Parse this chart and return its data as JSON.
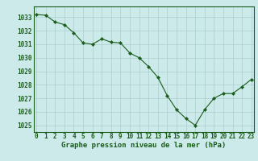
{
  "x": [
    0,
    1,
    2,
    3,
    4,
    5,
    6,
    7,
    8,
    9,
    10,
    11,
    12,
    13,
    14,
    15,
    16,
    17,
    18,
    19,
    20,
    21,
    22,
    23
  ],
  "y": [
    1033.2,
    1033.15,
    1032.65,
    1032.45,
    1031.85,
    1031.1,
    1031.0,
    1031.4,
    1031.15,
    1031.1,
    1030.35,
    1030.0,
    1029.35,
    1028.55,
    1027.2,
    1026.15,
    1025.5,
    1025.0,
    1026.15,
    1027.0,
    1027.35,
    1027.35,
    1027.85,
    1028.4
  ],
  "line_color": "#1a5c1a",
  "marker": "D",
  "marker_size": 2.2,
  "bg_color": "#cceaea",
  "grid_color": "#aacece",
  "xlabel": "Graphe pression niveau de la mer (hPa)",
  "xlabel_color": "#1a5c1a",
  "tick_color": "#1a5c1a",
  "ylim": [
    1024.5,
    1033.8
  ],
  "yticks": [
    1025,
    1026,
    1027,
    1028,
    1029,
    1030,
    1031,
    1032,
    1033
  ],
  "xlim": [
    -0.3,
    23.3
  ],
  "xticks": [
    0,
    1,
    2,
    3,
    4,
    5,
    6,
    7,
    8,
    9,
    10,
    11,
    12,
    13,
    14,
    15,
    16,
    17,
    18,
    19,
    20,
    21,
    22,
    23
  ],
  "tick_fontsize": 5.5,
  "xlabel_fontsize": 6.5
}
